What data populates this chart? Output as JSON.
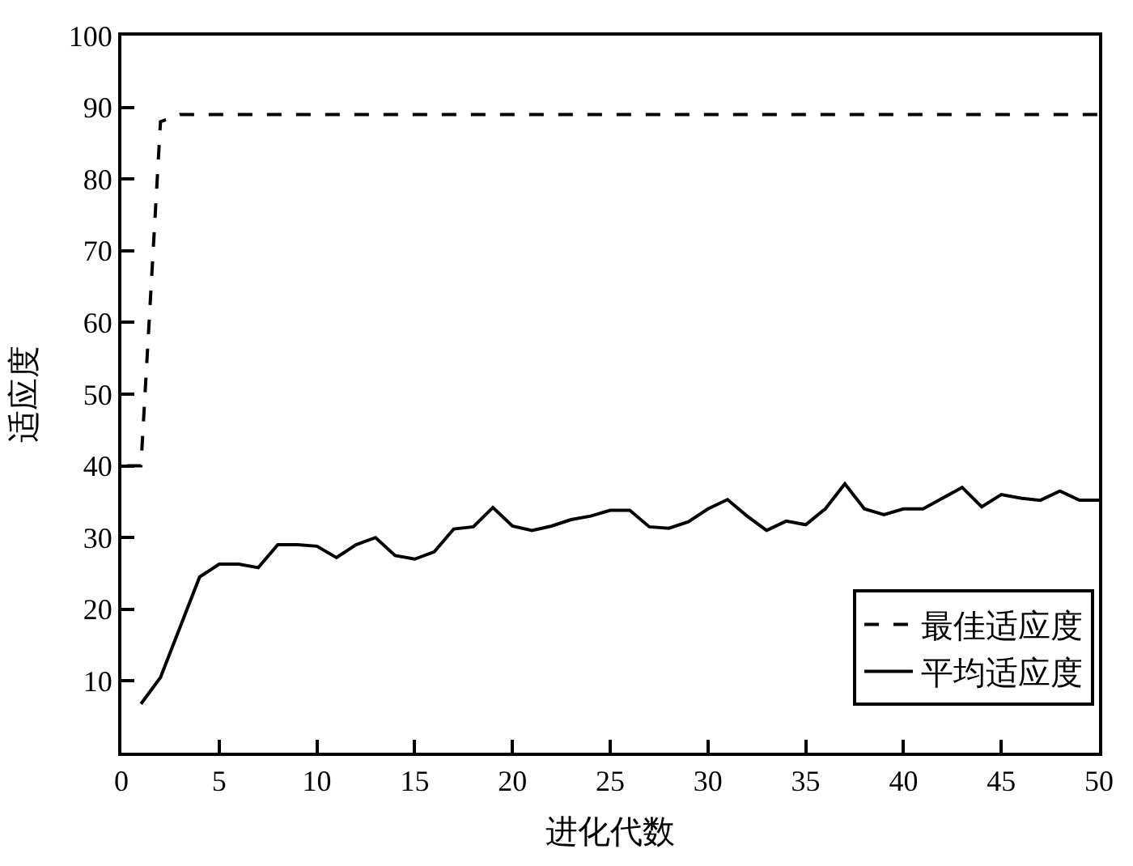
{
  "chart_data": {
    "type": "line",
    "xlabel": "进化代数",
    "ylabel": "适应度",
    "xlim": [
      0,
      50
    ],
    "xticks": [
      0,
      5,
      10,
      15,
      20,
      25,
      30,
      35,
      40,
      45,
      50
    ],
    "ylim": [
      0,
      100
    ],
    "yticks": [
      {
        "value": 0,
        "label": null
      },
      10,
      20,
      30,
      40,
      50,
      60,
      70,
      80,
      90,
      100
    ],
    "legend": "bottom right",
    "series": [
      {
        "name": "最佳适应度",
        "color": "#000000",
        "line_style": "dashed",
        "x": [
          0.3,
          1,
          2,
          3,
          50
        ],
        "values": [
          40,
          40,
          88,
          89,
          89
        ]
      },
      {
        "name": "平均适应度",
        "color": "#000000",
        "line_style": "solid",
        "x": [
          1,
          2,
          3,
          4,
          5,
          6,
          7,
          8,
          9,
          10,
          11,
          12,
          13,
          14,
          15,
          16,
          17,
          18,
          19,
          20,
          21,
          22,
          23,
          24,
          25,
          26,
          27,
          28,
          29,
          30,
          31,
          32,
          33,
          34,
          35,
          36,
          37,
          38,
          39,
          40,
          41,
          42,
          43,
          44,
          45,
          46,
          47,
          48,
          49,
          50
        ],
        "values": [
          6.8,
          10.5,
          17.5,
          24.5,
          26.3,
          26.3,
          25.8,
          29,
          29,
          28.8,
          27.2,
          29,
          30,
          27.5,
          27,
          28,
          31.2,
          31.5,
          34.2,
          31.6,
          31,
          31.6,
          32.5,
          33,
          33.8,
          33.8,
          31.5,
          31.3,
          32.2,
          34,
          35.3,
          33,
          31,
          32.3,
          31.8,
          34,
          37.5,
          34,
          33.2,
          34,
          34,
          35.5,
          37,
          34.3,
          36,
          35.5,
          35.2,
          36.5,
          35.2,
          35.2
        ]
      }
    ]
  }
}
